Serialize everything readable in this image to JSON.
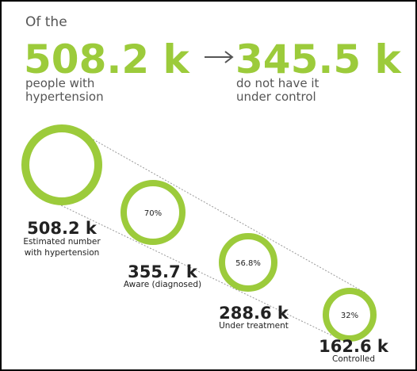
{
  "header": {
    "intro": "Of the",
    "total": "508.2 k",
    "total_caption": [
      "people with",
      "hypertension"
    ],
    "uncontrolled": "345.5 k",
    "uncontrolled_caption": [
      "do not have it",
      "under control"
    ]
  },
  "stages": [
    {
      "value": "508.2 k",
      "label": [
        "Estimated number",
        "with hypertension"
      ]
    },
    {
      "percent": "70%",
      "value": "355.7 k",
      "label": [
        "Aware (diagnosed)"
      ]
    },
    {
      "percent": "56.8%",
      "value": "288.6 k",
      "label": [
        "Under treatment"
      ]
    },
    {
      "percent": "32%",
      "value": "162.6 k",
      "label": [
        "Controlled"
      ]
    }
  ]
}
